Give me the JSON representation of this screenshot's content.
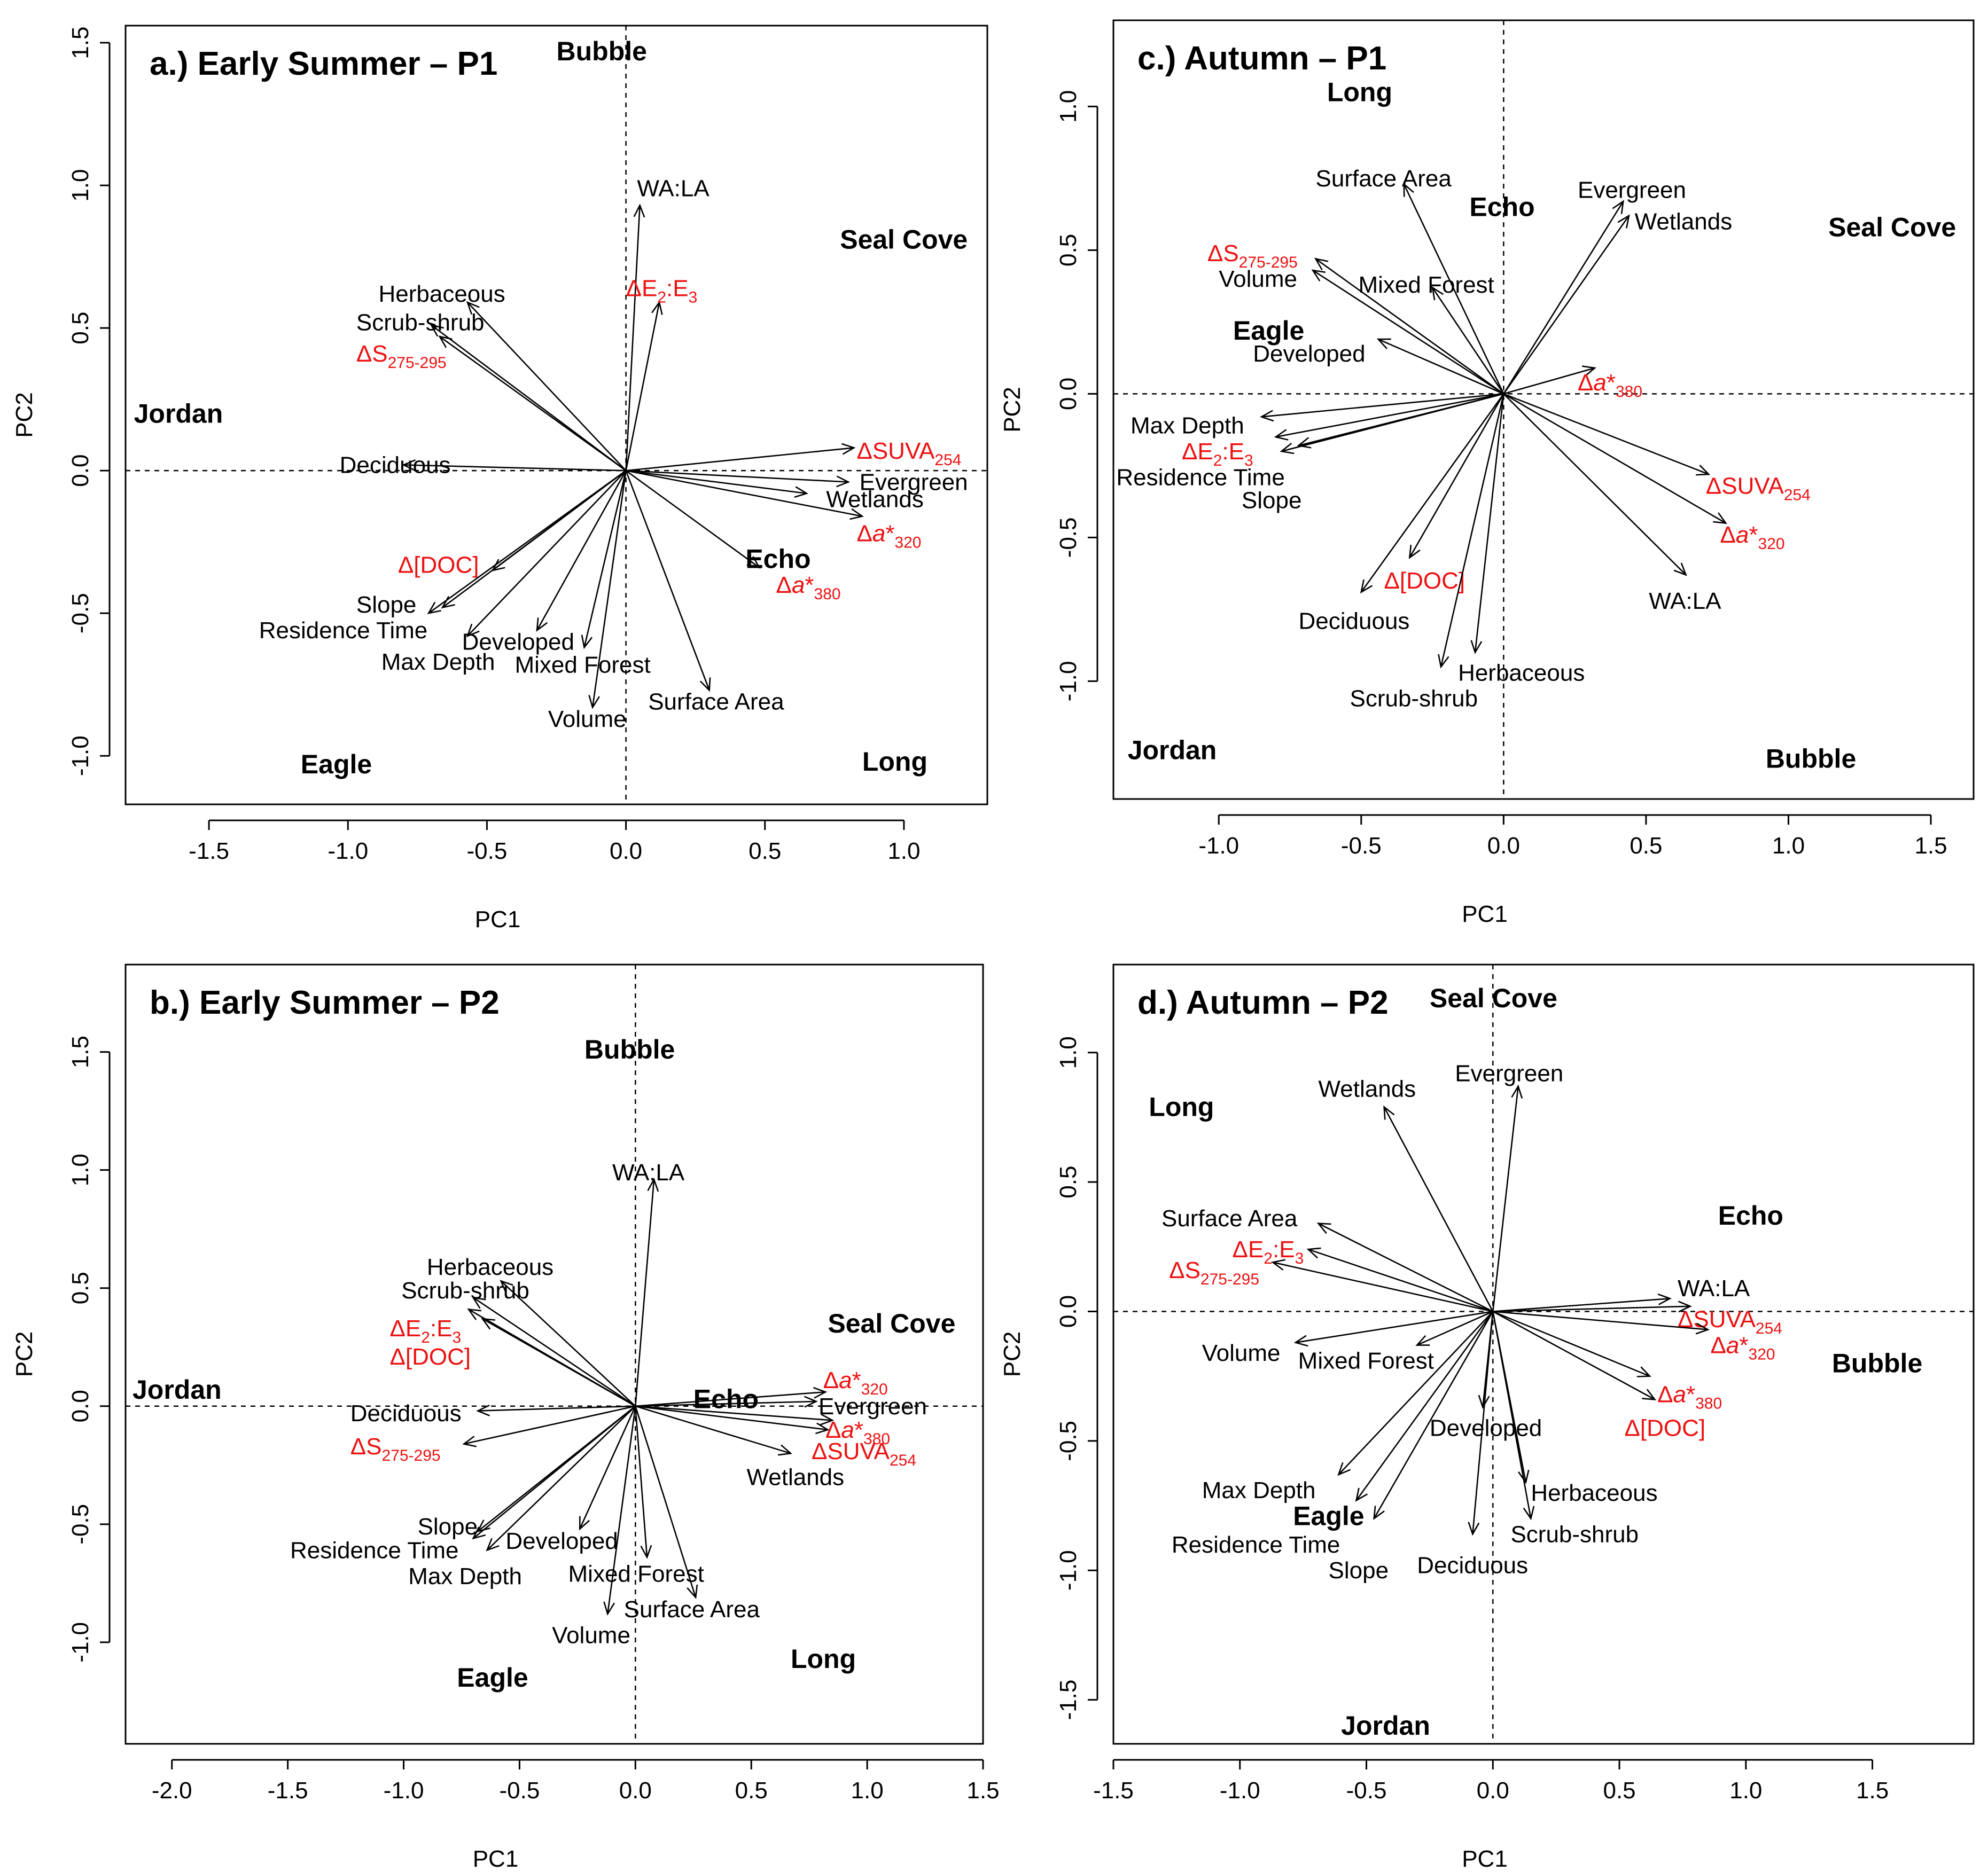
{
  "colors": {
    "loading_text": "#000000",
    "optical_text": "#ee1111",
    "site_text": "#000000"
  },
  "chart_data": [
    {
      "type": "scatter",
      "id": "a",
      "title": "a.) Early Summer – P1",
      "xlabel": "PC1",
      "ylabel": "PC2",
      "xlim": [
        -1.8,
        1.3
      ],
      "ylim": [
        -1.17,
        1.56
      ],
      "xticks": [
        -1.5,
        -1.0,
        -0.5,
        0.0,
        0.5,
        1.0
      ],
      "xtick_labels": [
        "-1.5",
        "-1.0",
        "-0.5",
        "0.0",
        "0.5",
        "1.0"
      ],
      "yticks": [
        -1.0,
        -0.5,
        0.0,
        0.5,
        1.0,
        1.5
      ],
      "ytick_labels": [
        "-1.0",
        "-0.5",
        "0.0",
        "0.5",
        "1.0",
        "1.5"
      ],
      "loadings": [
        {
          "label": "WA:LA",
          "x": 0.05,
          "y": 0.93,
          "lx": 0.04,
          "ly": 0.99,
          "optical": false
        },
        {
          "label": "ΔE2:E3",
          "x": 0.12,
          "y": 0.59,
          "lx": 0.0,
          "ly": 0.64,
          "optical": true
        },
        {
          "label": "Herbaceous",
          "x": -0.57,
          "y": 0.59,
          "lx": -0.89,
          "ly": 0.62,
          "optical": false
        },
        {
          "label": "Scrub-shrub",
          "x": -0.7,
          "y": 0.51,
          "lx": -0.97,
          "ly": 0.52,
          "optical": false
        },
        {
          "label": "ΔS275-295",
          "x": -0.67,
          "y": 0.47,
          "lx": -0.97,
          "ly": 0.41,
          "optical": true
        },
        {
          "label": "Deciduous",
          "x": -0.8,
          "y": 0.02,
          "lx": -1.03,
          "ly": 0.02,
          "optical": false
        },
        {
          "label": "ΔSUVA254",
          "x": 0.82,
          "y": 0.08,
          "lx": 0.83,
          "ly": 0.07,
          "optical": true
        },
        {
          "label": "Evergreen",
          "x": 0.8,
          "y": -0.04,
          "lx": 0.84,
          "ly": -0.04,
          "optical": false
        },
        {
          "label": "Wetlands",
          "x": 0.65,
          "y": -0.08,
          "lx": 0.72,
          "ly": -0.1,
          "optical": false
        },
        {
          "label": "Δa*320",
          "x": 0.85,
          "y": -0.16,
          "lx": 0.83,
          "ly": -0.22,
          "optical": true
        },
        {
          "label": "Δa*380",
          "x": 0.48,
          "y": -0.34,
          "lx": 0.54,
          "ly": -0.4,
          "optical": true
        },
        {
          "label": "Δ[DOC]",
          "x": -0.48,
          "y": -0.35,
          "lx": -0.82,
          "ly": -0.33,
          "optical": true
        },
        {
          "label": "Slope",
          "x": -0.71,
          "y": -0.5,
          "lx": -0.97,
          "ly": -0.47,
          "optical": false
        },
        {
          "label": "Residence Time",
          "x": -0.66,
          "y": -0.48,
          "lx": -1.32,
          "ly": -0.56,
          "optical": false
        },
        {
          "label": "Developed",
          "x": -0.32,
          "y": -0.56,
          "lx": -0.59,
          "ly": -0.6,
          "optical": false
        },
        {
          "label": "Max Depth",
          "x": -0.57,
          "y": -0.58,
          "lx": -0.88,
          "ly": -0.67,
          "optical": false
        },
        {
          "label": "Mixed Forest",
          "x": -0.15,
          "y": -0.62,
          "lx": -0.4,
          "ly": -0.68,
          "optical": false
        },
        {
          "label": "Volume",
          "x": -0.12,
          "y": -0.83,
          "lx": -0.28,
          "ly": -0.87,
          "optical": false
        },
        {
          "label": "Surface Area",
          "x": 0.3,
          "y": -0.77,
          "lx": 0.08,
          "ly": -0.81,
          "optical": false
        }
      ],
      "sites": [
        {
          "label": "Bubble",
          "x": -0.25,
          "y": 1.47
        },
        {
          "label": "Seal  Cove",
          "x": 0.77,
          "y": 0.81
        },
        {
          "label": "Jordan",
          "x": -1.77,
          "y": 0.2
        },
        {
          "label": "Echo",
          "x": 0.43,
          "y": -0.31
        },
        {
          "label": "Eagle",
          "x": -1.17,
          "y": -1.03
        },
        {
          "label": "Long",
          "x": 0.85,
          "y": -1.02
        }
      ]
    },
    {
      "type": "scatter",
      "id": "c",
      "title": "c.) Autumn – P1",
      "xlabel": "PC1",
      "ylabel": "PC2",
      "xlim": [
        -1.37,
        1.65
      ],
      "ylim": [
        -1.41,
        1.3
      ],
      "xticks": [
        -1.0,
        -0.5,
        0.0,
        0.5,
        1.0,
        1.5
      ],
      "xtick_labels": [
        "-1.0",
        "-0.5",
        "0.0",
        "0.5",
        "1.0",
        "1.5"
      ],
      "yticks": [
        -1.0,
        -0.5,
        0.0,
        0.5,
        1.0
      ],
      "ytick_labels": [
        "-1.0",
        "-0.5",
        "0.0",
        "0.5",
        "1.0"
      ],
      "loadings": [
        {
          "label": "Surface Area",
          "x": -0.35,
          "y": 0.73,
          "lx": -0.66,
          "ly": 0.75,
          "optical": false
        },
        {
          "label": "Evergreen",
          "x": 0.42,
          "y": 0.67,
          "lx": 0.26,
          "ly": 0.71,
          "optical": false
        },
        {
          "label": "Wetlands",
          "x": 0.44,
          "y": 0.62,
          "lx": 0.46,
          "ly": 0.6,
          "optical": false
        },
        {
          "label": "ΔS275-295",
          "x": -0.66,
          "y": 0.47,
          "lx": -1.04,
          "ly": 0.49,
          "optical": true
        },
        {
          "label": "Volume",
          "x": -0.67,
          "y": 0.43,
          "lx": -1.0,
          "ly": 0.4,
          "optical": false
        },
        {
          "label": "Mixed Forest",
          "x": -0.25,
          "y": 0.37,
          "lx": -0.51,
          "ly": 0.38,
          "optical": false
        },
        {
          "label": "Developed",
          "x": -0.44,
          "y": 0.19,
          "lx": -0.88,
          "ly": 0.14,
          "optical": false
        },
        {
          "label": "Δa*380",
          "x": 0.32,
          "y": 0.09,
          "lx": 0.26,
          "ly": 0.04,
          "optical": true
        },
        {
          "label": "Max Depth",
          "x": -0.85,
          "y": -0.08,
          "lx": -1.31,
          "ly": -0.11,
          "optical": false
        },
        {
          "label": "ΔE2:E3",
          "x": -0.8,
          "y": -0.15,
          "lx": -1.13,
          "ly": -0.2,
          "optical": true
        },
        {
          "label": "Residence Time",
          "x": -0.78,
          "y": -0.2,
          "lx": -1.36,
          "ly": -0.29,
          "optical": false
        },
        {
          "label": "Slope",
          "x": -0.72,
          "y": -0.18,
          "lx": -0.92,
          "ly": -0.37,
          "optical": false
        },
        {
          "label": "ΔSUVA254",
          "x": 0.72,
          "y": -0.28,
          "lx": 0.71,
          "ly": -0.32,
          "optical": true
        },
        {
          "label": "Δa*320",
          "x": 0.78,
          "y": -0.45,
          "lx": 0.76,
          "ly": -0.49,
          "optical": true
        },
        {
          "label": "WA:LA",
          "x": 0.64,
          "y": -0.63,
          "lx": 0.51,
          "ly": -0.72,
          "optical": false
        },
        {
          "label": "Δ[DOC]",
          "x": -0.33,
          "y": -0.57,
          "lx": -0.42,
          "ly": -0.65,
          "optical": true
        },
        {
          "label": "Deciduous",
          "x": -0.5,
          "y": -0.69,
          "lx": -0.72,
          "ly": -0.79,
          "optical": false
        },
        {
          "label": "Herbaceous",
          "x": -0.1,
          "y": -0.9,
          "lx": -0.16,
          "ly": -0.97,
          "optical": false
        },
        {
          "label": "Scrub-shrub",
          "x": -0.22,
          "y": -0.95,
          "lx": -0.54,
          "ly": -1.06,
          "optical": false
        }
      ],
      "sites": [
        {
          "label": "Long",
          "x": -0.62,
          "y": 1.05
        },
        {
          "label": "Echo",
          "x": -0.12,
          "y": 0.65
        },
        {
          "label": "Seal  Cove",
          "x": 1.14,
          "y": 0.58
        },
        {
          "label": "Eagle",
          "x": -0.95,
          "y": 0.22
        },
        {
          "label": "Jordan",
          "x": -1.32,
          "y": -1.24
        },
        {
          "label": "Bubble",
          "x": 0.92,
          "y": -1.27
        }
      ]
    },
    {
      "type": "scatter",
      "id": "b",
      "title": "b.) Early Summer – P2",
      "xlabel": "PC1",
      "ylabel": "PC2",
      "xlim": [
        -2.2,
        1.5
      ],
      "ylim": [
        -1.43,
        1.87
      ],
      "xticks": [
        -2.0,
        -1.5,
        -1.0,
        -0.5,
        0.0,
        0.5,
        1.0,
        1.5
      ],
      "xtick_labels": [
        "-2.0",
        "-1.5",
        "-1.0",
        "-0.5",
        "0.0",
        "0.5",
        "1.0",
        "1.5"
      ],
      "yticks": [
        -1.0,
        -0.5,
        0.0,
        0.5,
        1.0,
        1.5
      ],
      "ytick_labels": [
        "-1.0",
        "-0.5",
        "0.0",
        "0.5",
        "1.0",
        "1.5"
      ],
      "loadings": [
        {
          "label": "WA:LA",
          "x": 0.08,
          "y": 0.96,
          "lx": -0.1,
          "ly": 0.99,
          "optical": false
        },
        {
          "label": "Herbaceous",
          "x": -0.58,
          "y": 0.53,
          "lx": -0.9,
          "ly": 0.59,
          "optical": false
        },
        {
          "label": "Scrub-shrub",
          "x": -0.7,
          "y": 0.46,
          "lx": -1.01,
          "ly": 0.49,
          "optical": false
        },
        {
          "label": "ΔE2:E3",
          "x": -0.72,
          "y": 0.41,
          "lx": -1.06,
          "ly": 0.33,
          "optical": true
        },
        {
          "label": "Δ[DOC]",
          "x": -0.66,
          "y": 0.37,
          "lx": -1.06,
          "ly": 0.21,
          "optical": true
        },
        {
          "label": "Δa*320",
          "x": 0.82,
          "y": 0.06,
          "lx": 0.81,
          "ly": 0.11,
          "optical": true
        },
        {
          "label": "Evergreen",
          "x": 0.78,
          "y": 0.02,
          "lx": 0.79,
          "ly": 0.0,
          "optical": false
        },
        {
          "label": "Δa*380",
          "x": 0.85,
          "y": -0.06,
          "lx": 0.82,
          "ly": -0.1,
          "optical": true
        },
        {
          "label": "ΔSUVA254",
          "x": 0.83,
          "y": -0.1,
          "lx": 0.76,
          "ly": -0.19,
          "optical": true
        },
        {
          "label": "Wetlands",
          "x": 0.67,
          "y": -0.2,
          "lx": 0.48,
          "ly": -0.3,
          "optical": false
        },
        {
          "label": "Deciduous",
          "x": -0.68,
          "y": -0.02,
          "lx": -1.23,
          "ly": -0.03,
          "optical": false
        },
        {
          "label": "ΔS275-295",
          "x": -0.74,
          "y": -0.16,
          "lx": -1.23,
          "ly": -0.17,
          "optical": true
        },
        {
          "label": "Slope",
          "x": -0.68,
          "y": -0.53,
          "lx": -0.94,
          "ly": -0.51,
          "optical": false
        },
        {
          "label": "Residence Time",
          "x": -0.7,
          "y": -0.56,
          "lx": -1.49,
          "ly": -0.61,
          "optical": false
        },
        {
          "label": "Developed",
          "x": -0.24,
          "y": -0.52,
          "lx": -0.56,
          "ly": -0.57,
          "optical": false
        },
        {
          "label": "Max Depth",
          "x": -0.64,
          "y": -0.61,
          "lx": -0.98,
          "ly": -0.72,
          "optical": false
        },
        {
          "label": "Mixed Forest",
          "x": 0.05,
          "y": -0.64,
          "lx": -0.29,
          "ly": -0.71,
          "optical": false
        },
        {
          "label": "Surface Area",
          "x": 0.26,
          "y": -0.81,
          "lx": -0.05,
          "ly": -0.86,
          "optical": false
        },
        {
          "label": "Volume",
          "x": -0.12,
          "y": -0.88,
          "lx": -0.36,
          "ly": -0.97,
          "optical": false
        }
      ],
      "sites": [
        {
          "label": "Bubble",
          "x": -0.22,
          "y": 1.51
        },
        {
          "label": "Seal  Cove",
          "x": 0.83,
          "y": 0.35
        },
        {
          "label": "Jordan",
          "x": -2.17,
          "y": 0.07
        },
        {
          "label": "Echo",
          "x": 0.25,
          "y": 0.03
        },
        {
          "label": "Eagle",
          "x": -0.77,
          "y": -1.15
        },
        {
          "label": "Long",
          "x": 0.67,
          "y": -1.07
        }
      ]
    },
    {
      "type": "scatter",
      "id": "d",
      "title": "d.) Autumn – P2",
      "xlabel": "PC1",
      "ylabel": "PC2",
      "xlim": [
        -1.5,
        1.9
      ],
      "ylim": [
        -1.67,
        1.34
      ],
      "xticks": [
        -1.5,
        -1.0,
        -0.5,
        0.0,
        0.5,
        1.0,
        1.5
      ],
      "xtick_labels": [
        "-1.5",
        "-1.0",
        "-0.5",
        "0.0",
        "0.5",
        "1.0",
        "1.5"
      ],
      "yticks": [
        -1.5,
        -1.0,
        -0.5,
        0.0,
        0.5,
        1.0
      ],
      "ytick_labels": [
        "-1.5",
        "-1.0",
        "-0.5",
        "0.0",
        "0.5",
        "1.0"
      ],
      "loadings": [
        {
          "label": "Evergreen",
          "x": 0.1,
          "y": 0.87,
          "lx": -0.15,
          "ly": 0.92,
          "optical": false
        },
        {
          "label": "Wetlands",
          "x": -0.43,
          "y": 0.79,
          "lx": -0.69,
          "ly": 0.86,
          "optical": false
        },
        {
          "label": "Surface Area",
          "x": -0.69,
          "y": 0.34,
          "lx": -1.31,
          "ly": 0.36,
          "optical": false
        },
        {
          "label": "ΔE2:E3",
          "x": -0.73,
          "y": 0.24,
          "lx": -1.03,
          "ly": 0.24,
          "optical": true
        },
        {
          "label": "ΔS275-295",
          "x": -0.87,
          "y": 0.19,
          "lx": -1.28,
          "ly": 0.16,
          "optical": true
        },
        {
          "label": "WA:LA",
          "x": 0.7,
          "y": 0.05,
          "lx": 0.73,
          "ly": 0.09,
          "optical": false
        },
        {
          "label": "ΔSUVA254",
          "x": 0.78,
          "y": 0.02,
          "lx": 0.73,
          "ly": -0.03,
          "optical": true
        },
        {
          "label": "Δa*320",
          "x": 0.85,
          "y": -0.07,
          "lx": 0.86,
          "ly": -0.13,
          "optical": true
        },
        {
          "label": "Δa*380",
          "x": 0.62,
          "y": -0.25,
          "lx": 0.65,
          "ly": -0.32,
          "optical": true
        },
        {
          "label": "Δ[DOC]",
          "x": 0.64,
          "y": -0.34,
          "lx": 0.52,
          "ly": -0.45,
          "optical": true
        },
        {
          "label": "Volume",
          "x": -0.78,
          "y": -0.12,
          "lx": -1.15,
          "ly": -0.16,
          "optical": false
        },
        {
          "label": "Mixed Forest",
          "x": -0.3,
          "y": -0.13,
          "lx": -0.77,
          "ly": -0.19,
          "optical": false
        },
        {
          "label": "Developed",
          "x": -0.04,
          "y": -0.37,
          "lx": -0.25,
          "ly": -0.45,
          "optical": false
        },
        {
          "label": "Herbaceous",
          "x": 0.13,
          "y": -0.66,
          "lx": 0.15,
          "ly": -0.7,
          "optical": false
        },
        {
          "label": "Scrub-shrub",
          "x": 0.15,
          "y": -0.8,
          "lx": 0.07,
          "ly": -0.86,
          "optical": false
        },
        {
          "label": "Max Depth",
          "x": -0.61,
          "y": -0.63,
          "lx": -1.15,
          "ly": -0.69,
          "optical": false
        },
        {
          "label": "Residence Time",
          "x": -0.54,
          "y": -0.73,
          "lx": -1.27,
          "ly": -0.9,
          "optical": false
        },
        {
          "label": "Slope",
          "x": -0.47,
          "y": -0.8,
          "lx": -0.65,
          "ly": -1.0,
          "optical": false
        },
        {
          "label": "Deciduous",
          "x": -0.08,
          "y": -0.86,
          "lx": -0.3,
          "ly": -0.98,
          "optical": false
        }
      ],
      "sites": [
        {
          "label": "Seal  Cove",
          "x": -0.25,
          "y": 1.21
        },
        {
          "label": "Long",
          "x": -1.36,
          "y": 0.79
        },
        {
          "label": "Echo",
          "x": 0.89,
          "y": 0.37
        },
        {
          "label": "Bubble",
          "x": 1.34,
          "y": -0.2
        },
        {
          "label": "Eagle",
          "x": -0.79,
          "y": -0.79
        },
        {
          "label": "Jordan",
          "x": -0.6,
          "y": -1.6
        }
      ]
    }
  ]
}
